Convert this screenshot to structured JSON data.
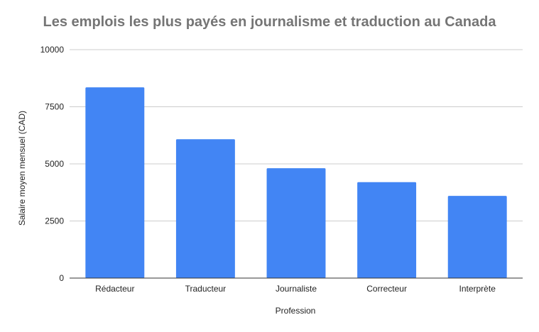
{
  "chart_data": {
    "type": "bar",
    "title": "Les emplois les plus payés en journalisme et traduction au Canada",
    "xlabel": "Profession",
    "ylabel": "Salaire moyen mensuel (CAD)",
    "categories": [
      "Rédacteur",
      "Traducteur",
      "Journaliste",
      "Correcteur",
      "Interprète"
    ],
    "values": [
      8350,
      6080,
      4810,
      4200,
      3600
    ],
    "ylim": [
      0,
      10000
    ],
    "yticks": [
      "0",
      "2500",
      "5000",
      "7500",
      "10000"
    ],
    "ytick_values": [
      0,
      2500,
      5000,
      7500,
      10000
    ],
    "grid": true,
    "legend": "none",
    "bar_color": "#4285f4",
    "grid_color": "#cccccc",
    "axis_color": "#333333"
  }
}
